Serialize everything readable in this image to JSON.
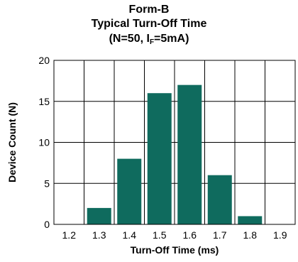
{
  "chart_data": {
    "type": "bar",
    "title": "Form-B",
    "subtitle": "Typical Turn-Off Time",
    "condition": {
      "prefix": "(N=50, I",
      "subscript": "F",
      "suffix": "=5mA)"
    },
    "xlabel": "Turn-Off Time (ms)",
    "ylabel": "Device Count (N)",
    "categories": [
      "1.2",
      "1.3",
      "1.4",
      "1.5",
      "1.6",
      "1.7",
      "1.8",
      "1.9"
    ],
    "values": [
      0,
      2,
      8,
      16,
      17,
      6,
      1,
      0
    ],
    "ylim": [
      0,
      20
    ],
    "yticks": [
      0,
      5,
      10,
      15,
      20
    ],
    "grid": true,
    "bar_color": "#0f6b5e",
    "legend": "none"
  }
}
